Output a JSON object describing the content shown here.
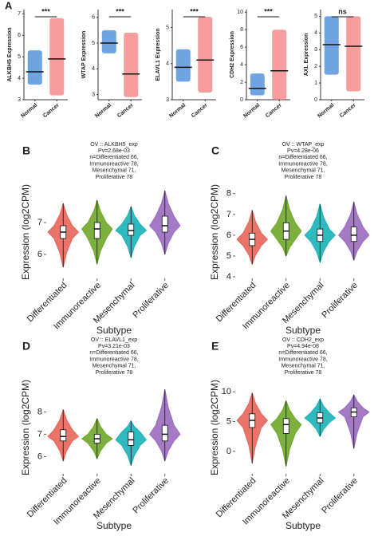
{
  "chart_data": [
    {
      "type": "strip",
      "panel": "A",
      "ylabel": "ALKBH5 Expression",
      "categories": [
        "Normal",
        "Cancer"
      ],
      "colors": [
        "#3f86d6",
        "#f47c7c"
      ],
      "min": [
        3.7,
        3.2
      ],
      "median": [
        4.3,
        4.9
      ],
      "max": [
        5.3,
        6.8
      ],
      "significance": "***",
      "ylim": [
        3,
        7.2
      ],
      "yticks": [
        3,
        4,
        5,
        6,
        7
      ]
    },
    {
      "type": "strip",
      "ylabel": "WTAP Expression",
      "categories": [
        "Normal",
        "Cancer"
      ],
      "colors": [
        "#3f86d6",
        "#f47c7c"
      ],
      "min": [
        4.6,
        2.9
      ],
      "median": [
        5.0,
        3.8
      ],
      "max": [
        5.5,
        5.4
      ],
      "significance": "***",
      "ylim": [
        2.8,
        6.3
      ],
      "yticks": [
        3,
        4,
        5,
        6
      ]
    },
    {
      "type": "strip",
      "ylabel": "ELAVL1 Expression",
      "categories": [
        "Normal",
        "Cancer"
      ],
      "colors": [
        "#3f86d6",
        "#f47c7c"
      ],
      "min": [
        3.5,
        3.2
      ],
      "median": [
        3.9,
        4.1
      ],
      "max": [
        4.4,
        5.3
      ],
      "significance": "***",
      "ylim": [
        3,
        5.5
      ],
      "yticks": [
        3,
        4,
        5
      ]
    },
    {
      "type": "strip",
      "ylabel": "CDH2 Expression",
      "categories": [
        "Normal",
        "Cancer"
      ],
      "colors": [
        "#3f86d6",
        "#f47c7c"
      ],
      "min": [
        0.5,
        0
      ],
      "median": [
        1.3,
        3.3
      ],
      "max": [
        3,
        8
      ],
      "significance": "***",
      "ylim": [
        0,
        10.3
      ],
      "yticks": [
        0,
        2,
        4,
        6,
        8,
        10
      ]
    },
    {
      "type": "strip",
      "ylabel": "AXL Expression",
      "categories": [
        "Normal",
        "Cancer"
      ],
      "colors": [
        "#3f86d6",
        "#f47c7c"
      ],
      "min": [
        1.5,
        0.5
      ],
      "median": [
        3.3,
        3.2
      ],
      "max": [
        5,
        5
      ],
      "significance": "ns",
      "ylim": [
        0,
        5.4
      ],
      "yticks": [
        0,
        1,
        2,
        3,
        4,
        5
      ]
    },
    {
      "type": "violin",
      "panel": "B",
      "subtitle": [
        "OV :: ALKBH5_exp",
        "Pv=2.68e-03",
        "n=Differentiated 66,",
        "Immunoreactive 78,",
        "Mesenchymal 71,",
        "Proliferative 78"
      ],
      "ylabel": "Expression (log2CPM)",
      "xlabel": "Subtype",
      "categories": [
        "Differentiated",
        "Immunoreactive",
        "Mesenchymal",
        "Proliferative"
      ],
      "colors": [
        "#e8655a",
        "#6fa72a",
        "#17b3b8",
        "#9a6bbf"
      ],
      "min": [
        5.6,
        5.7,
        5.9,
        6.0
      ],
      "q1": [
        6.5,
        6.5,
        6.6,
        6.7
      ],
      "median": [
        6.7,
        6.8,
        6.75,
        6.9
      ],
      "q3": [
        6.9,
        7.0,
        6.95,
        7.2
      ],
      "max": [
        7.6,
        7.7,
        7.5,
        8.0
      ],
      "ylim": [
        5.3,
        8.1
      ],
      "yticks": [
        6,
        7
      ]
    },
    {
      "type": "violin",
      "panel": "C",
      "subtitle": [
        "OV :: WTAP_exp",
        "Pv=4.28e-06",
        "n=Differentiated 66,",
        "Immunoreactive 78,",
        "Mesenchymal 71,",
        "Proliferative 78"
      ],
      "ylabel": "Expression (log2CPM)",
      "xlabel": "Subtype",
      "categories": [
        "Differentiated",
        "Immunoreactive",
        "Mesenchymal",
        "Proliferative"
      ],
      "colors": [
        "#e8655a",
        "#6fa72a",
        "#17b3b8",
        "#9a6bbf"
      ],
      "min": [
        4.6,
        5.0,
        4.7,
        4.8
      ],
      "q1": [
        5.5,
        5.8,
        5.7,
        5.7
      ],
      "median": [
        5.8,
        6.2,
        6.0,
        6.0
      ],
      "q3": [
        6.1,
        6.6,
        6.3,
        6.4
      ],
      "max": [
        7.2,
        7.9,
        7.5,
        7.6
      ],
      "ylim": [
        4,
        8.3
      ],
      "yticks": [
        4,
        5,
        6,
        7,
        8
      ]
    },
    {
      "type": "violin",
      "panel": "D",
      "subtitle": [
        "OV :: ELAVL1_exp",
        "Pv=3.21e-03",
        "n=Differentiated 66,",
        "Immunoreactive 78,",
        "Mesenchymal 71,",
        "Proliferative 78"
      ],
      "ylabel": "Expression (log2CPM)",
      "xlabel": "Subtype",
      "categories": [
        "Differentiated",
        "Immunoreactive",
        "Mesenchymal",
        "Proliferative"
      ],
      "colors": [
        "#e8655a",
        "#6fa72a",
        "#17b3b8",
        "#9a6bbf"
      ],
      "min": [
        5.8,
        5.9,
        5.6,
        5.8
      ],
      "q1": [
        6.7,
        6.6,
        6.5,
        6.7
      ],
      "median": [
        6.9,
        6.8,
        6.75,
        7.0
      ],
      "q3": [
        7.2,
        7.0,
        7.1,
        7.4
      ],
      "max": [
        8.1,
        7.7,
        7.6,
        9.0
      ],
      "ylim": [
        5.3,
        9.3
      ],
      "yticks": [
        6,
        7,
        8
      ]
    },
    {
      "type": "violin",
      "panel": "E",
      "subtitle": [
        "OV :: CDH2_exp",
        "Pv=4.94e-08",
        "n=Differentiated 66,",
        "Immunoreactive 78,",
        "Mesenchymal 71,",
        "Proliferative 78"
      ],
      "ylabel": "Expression (log2CPM)",
      "xlabel": "Subtype",
      "categories": [
        "Differentiated",
        "Immunoreactive",
        "Mesenchymal",
        "Proliferative"
      ],
      "colors": [
        "#e8655a",
        "#6fa72a",
        "#17b3b8",
        "#9a6bbf"
      ],
      "min": [
        -2,
        -2.5,
        2.5,
        0.5
      ],
      "q1": [
        4,
        3,
        4.8,
        5.8
      ],
      "median": [
        5.2,
        4.5,
        5.6,
        6.6
      ],
      "q3": [
        6.3,
        5.5,
        6.5,
        7.3
      ],
      "max": [
        9.8,
        8.5,
        8.8,
        9.5
      ],
      "ylim": [
        -3.5,
        11.5
      ],
      "yticks": [
        0,
        5,
        10
      ]
    }
  ]
}
